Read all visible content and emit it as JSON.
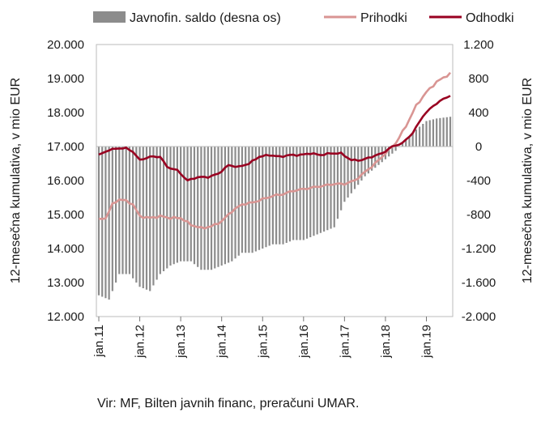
{
  "chart_data": {
    "type": "line+bar",
    "legend": [
      {
        "label": "Javnofin. saldo (desna os)",
        "color": "#8c8c8c",
        "kind": "bar"
      },
      {
        "label": "Prihodki",
        "color": "#d99593",
        "kind": "line"
      },
      {
        "label": "Odhodki",
        "color": "#990021",
        "kind": "line"
      }
    ],
    "legend_position": "top",
    "y_left": {
      "label": "12-mesečna kumulativa, v mio EUR",
      "range": [
        12000,
        20000
      ],
      "ticks": [
        12000,
        13000,
        14000,
        15000,
        16000,
        17000,
        18000,
        19000,
        20000
      ],
      "tick_labels": [
        "12.000",
        "13.000",
        "14.000",
        "15.000",
        "16.000",
        "17.000",
        "18.000",
        "19.000",
        "20.000"
      ]
    },
    "y_right": {
      "label": "12-mesečna kumulativa, v mio EUR",
      "range": [
        -2000,
        1200
      ],
      "ticks": [
        -2000,
        -1600,
        -1200,
        -800,
        -400,
        0,
        400,
        800,
        1200
      ],
      "tick_labels": [
        "-2.000",
        "-1.600",
        "-1.200",
        "-800",
        "-400",
        "0",
        "400",
        "800",
        "1.200"
      ]
    },
    "x": {
      "start": "2011-01",
      "months": 104,
      "tick_labels": [
        "jan.11",
        "jan.12",
        "jan.13",
        "jan.14",
        "jan.15",
        "jan.16",
        "jan.17",
        "jan.18",
        "jan.19"
      ]
    },
    "grid": false,
    "prihodki": [
      {
        "month": "2011-01",
        "value": 14850
      },
      {
        "month": "2011-03",
        "value": 14900
      },
      {
        "month": "2011-05",
        "value": 15300
      },
      {
        "month": "2011-07",
        "value": 15450
      },
      {
        "month": "2011-09",
        "value": 15400
      },
      {
        "month": "2011-11",
        "value": 15300
      },
      {
        "month": "2012-01",
        "value": 14950
      },
      {
        "month": "2012-04",
        "value": 14900
      },
      {
        "month": "2012-07",
        "value": 14950
      },
      {
        "month": "2012-10",
        "value": 14900
      },
      {
        "month": "2013-01",
        "value": 14900
      },
      {
        "month": "2013-04",
        "value": 14700
      },
      {
        "month": "2013-07",
        "value": 14600
      },
      {
        "month": "2013-10",
        "value": 14650
      },
      {
        "month": "2014-01",
        "value": 14800
      },
      {
        "month": "2014-04",
        "value": 15100
      },
      {
        "month": "2014-07",
        "value": 15300
      },
      {
        "month": "2014-10",
        "value": 15350
      },
      {
        "month": "2015-01",
        "value": 15450
      },
      {
        "month": "2015-04",
        "value": 15550
      },
      {
        "month": "2015-07",
        "value": 15600
      },
      {
        "month": "2015-10",
        "value": 15700
      },
      {
        "month": "2016-01",
        "value": 15750
      },
      {
        "month": "2016-04",
        "value": 15800
      },
      {
        "month": "2016-07",
        "value": 15850
      },
      {
        "month": "2016-10",
        "value": 15900
      },
      {
        "month": "2017-01",
        "value": 15900
      },
      {
        "month": "2017-04",
        "value": 16000
      },
      {
        "month": "2017-07",
        "value": 16250
      },
      {
        "month": "2017-10",
        "value": 16500
      },
      {
        "month": "2018-01",
        "value": 16800
      },
      {
        "month": "2018-04",
        "value": 17100
      },
      {
        "month": "2018-07",
        "value": 17600
      },
      {
        "month": "2018-10",
        "value": 18200
      },
      {
        "month": "2019-01",
        "value": 18600
      },
      {
        "month": "2019-04",
        "value": 18900
      },
      {
        "month": "2019-08",
        "value": 19150
      }
    ],
    "odhodki": [
      {
        "month": "2011-01",
        "value": 16750
      },
      {
        "month": "2011-04",
        "value": 16900
      },
      {
        "month": "2011-07",
        "value": 16950
      },
      {
        "month": "2011-09",
        "value": 16950
      },
      {
        "month": "2011-11",
        "value": 16850
      },
      {
        "month": "2012-01",
        "value": 16600
      },
      {
        "month": "2012-04",
        "value": 16700
      },
      {
        "month": "2012-07",
        "value": 16700
      },
      {
        "month": "2012-09",
        "value": 16400
      },
      {
        "month": "2012-12",
        "value": 16300
      },
      {
        "month": "2013-03",
        "value": 16000
      },
      {
        "month": "2013-06",
        "value": 16100
      },
      {
        "month": "2013-09",
        "value": 16100
      },
      {
        "month": "2013-12",
        "value": 16200
      },
      {
        "month": "2014-03",
        "value": 16450
      },
      {
        "month": "2014-06",
        "value": 16400
      },
      {
        "month": "2014-09",
        "value": 16500
      },
      {
        "month": "2014-12",
        "value": 16700
      },
      {
        "month": "2015-03",
        "value": 16750
      },
      {
        "month": "2015-06",
        "value": 16700
      },
      {
        "month": "2015-09",
        "value": 16750
      },
      {
        "month": "2015-12",
        "value": 16750
      },
      {
        "month": "2016-03",
        "value": 16800
      },
      {
        "month": "2016-06",
        "value": 16750
      },
      {
        "month": "2016-09",
        "value": 16800
      },
      {
        "month": "2016-12",
        "value": 16800
      },
      {
        "month": "2017-03",
        "value": 16600
      },
      {
        "month": "2017-06",
        "value": 16600
      },
      {
        "month": "2017-09",
        "value": 16700
      },
      {
        "month": "2017-12",
        "value": 16800
      },
      {
        "month": "2018-03",
        "value": 17000
      },
      {
        "month": "2018-06",
        "value": 17100
      },
      {
        "month": "2018-09",
        "value": 17400
      },
      {
        "month": "2018-12",
        "value": 17900
      },
      {
        "month": "2019-03",
        "value": 18200
      },
      {
        "month": "2019-06",
        "value": 18400
      },
      {
        "month": "2019-08",
        "value": 18500
      }
    ],
    "saldo": [
      {
        "month": "2011-01",
        "value": -1750
      },
      {
        "month": "2011-04",
        "value": -1800
      },
      {
        "month": "2011-07",
        "value": -1500
      },
      {
        "month": "2011-10",
        "value": -1500
      },
      {
        "month": "2012-01",
        "value": -1650
      },
      {
        "month": "2012-04",
        "value": -1700
      },
      {
        "month": "2012-07",
        "value": -1500
      },
      {
        "month": "2012-10",
        "value": -1400
      },
      {
        "month": "2013-01",
        "value": -1350
      },
      {
        "month": "2013-04",
        "value": -1350
      },
      {
        "month": "2013-07",
        "value": -1450
      },
      {
        "month": "2013-10",
        "value": -1450
      },
      {
        "month": "2014-01",
        "value": -1400
      },
      {
        "month": "2014-04",
        "value": -1350
      },
      {
        "month": "2014-07",
        "value": -1250
      },
      {
        "month": "2014-10",
        "value": -1250
      },
      {
        "month": "2015-01",
        "value": -1200
      },
      {
        "month": "2015-04",
        "value": -1150
      },
      {
        "month": "2015-07",
        "value": -1150
      },
      {
        "month": "2015-10",
        "value": -1100
      },
      {
        "month": "2016-01",
        "value": -1100
      },
      {
        "month": "2016-04",
        "value": -1050
      },
      {
        "month": "2016-07",
        "value": -1000
      },
      {
        "month": "2016-10",
        "value": -950
      },
      {
        "month": "2017-01",
        "value": -650
      },
      {
        "month": "2017-04",
        "value": -500
      },
      {
        "month": "2017-07",
        "value": -350
      },
      {
        "month": "2017-10",
        "value": -250
      },
      {
        "month": "2018-01",
        "value": -150
      },
      {
        "month": "2018-04",
        "value": -50
      },
      {
        "month": "2018-07",
        "value": 80
      },
      {
        "month": "2018-10",
        "value": 200
      },
      {
        "month": "2019-01",
        "value": 300
      },
      {
        "month": "2019-04",
        "value": 330
      },
      {
        "month": "2019-08",
        "value": 350
      }
    ]
  },
  "source": "Vir: MF, Bilten javnih financ, preračuni UMAR."
}
